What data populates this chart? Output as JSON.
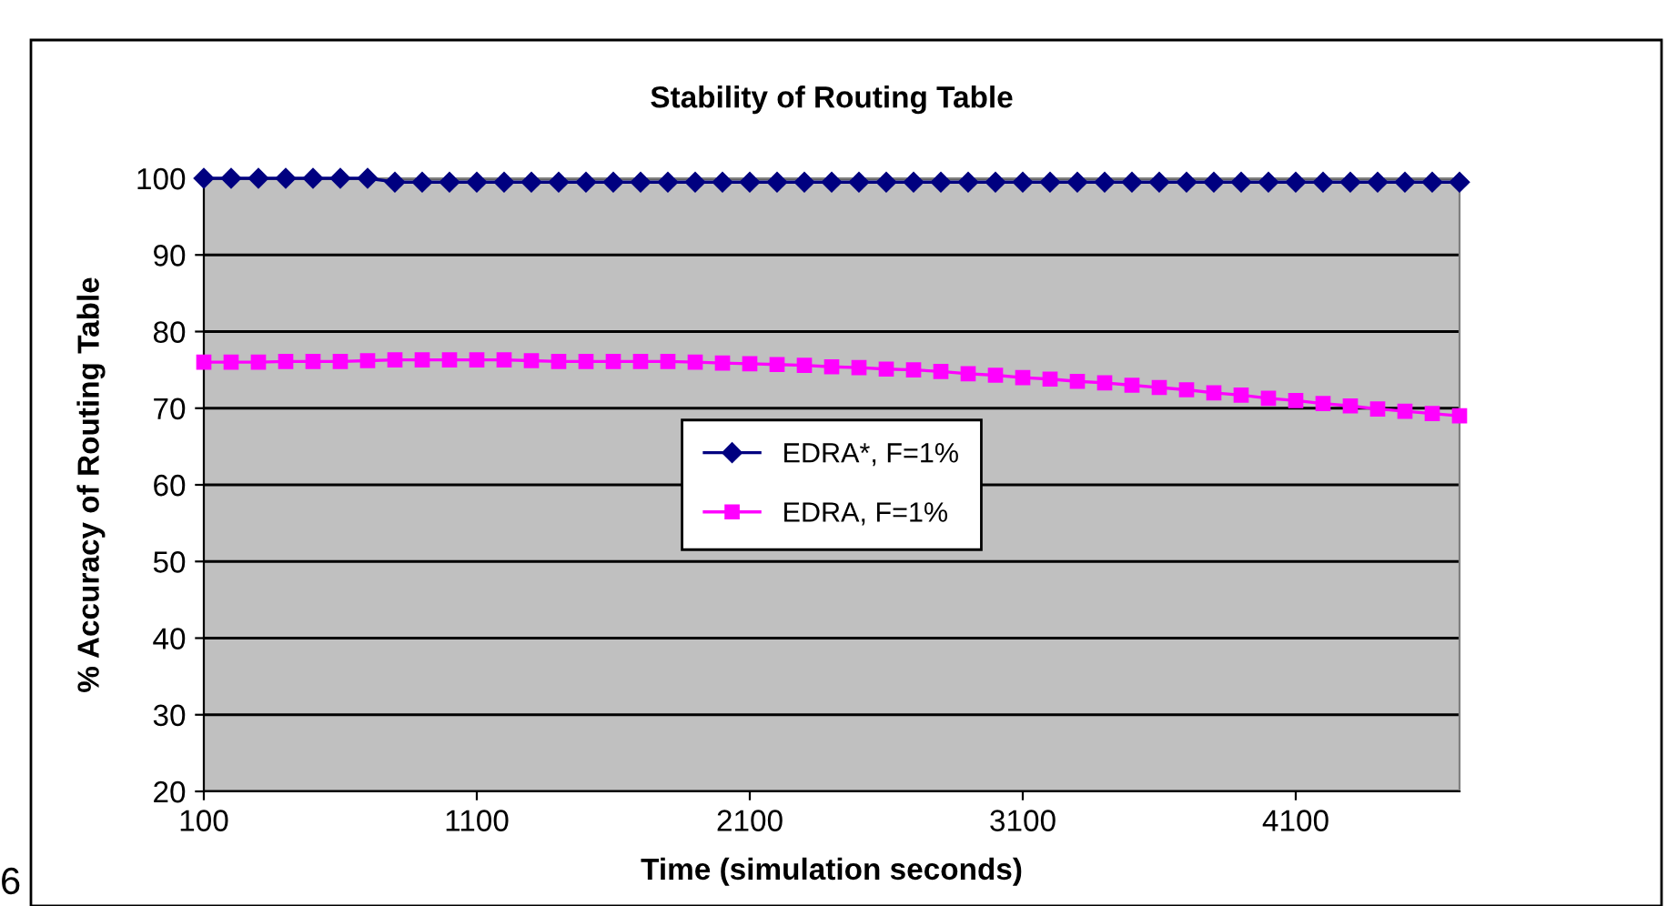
{
  "chart_data": {
    "type": "line",
    "title": "Stability of Routing Table",
    "xlabel": "Time (simulation seconds)",
    "ylabel": "% Accuracy of Routing Table",
    "x": [
      100,
      200,
      300,
      400,
      500,
      600,
      700,
      800,
      900,
      1000,
      1100,
      1200,
      1300,
      1400,
      1500,
      1600,
      1700,
      1800,
      1900,
      2000,
      2100,
      2200,
      2300,
      2400,
      2500,
      2600,
      2700,
      2800,
      2900,
      3000,
      3100,
      3200,
      3300,
      3400,
      3500,
      3600,
      3700,
      3800,
      3900,
      4000,
      4100,
      4200,
      4300,
      4400,
      4500,
      4600,
      4700
    ],
    "series": [
      {
        "name": "EDRA*, F=1%",
        "color": "#000080",
        "marker": "diamond",
        "values": [
          100,
          100,
          100,
          100,
          100,
          100,
          100,
          99.5,
          99.5,
          99.5,
          99.5,
          99.5,
          99.5,
          99.5,
          99.5,
          99.5,
          99.5,
          99.5,
          99.5,
          99.5,
          99.5,
          99.5,
          99.5,
          99.5,
          99.5,
          99.5,
          99.5,
          99.5,
          99.5,
          99.5,
          99.5,
          99.5,
          99.5,
          99.5,
          99.5,
          99.5,
          99.5,
          99.5,
          99.5,
          99.5,
          99.5,
          99.5,
          99.5,
          99.5,
          99.5,
          99.5,
          99.5
        ]
      },
      {
        "name": "EDRA, F=1%",
        "color": "#ff00ff",
        "marker": "square",
        "values": [
          76,
          76,
          76,
          76.1,
          76.1,
          76.1,
          76.2,
          76.3,
          76.3,
          76.3,
          76.3,
          76.3,
          76.2,
          76.1,
          76.1,
          76.1,
          76.1,
          76.1,
          76,
          75.9,
          75.8,
          75.7,
          75.6,
          75.4,
          75.3,
          75.1,
          75,
          74.8,
          74.5,
          74.3,
          74,
          73.8,
          73.5,
          73.3,
          73,
          72.7,
          72.4,
          72,
          71.7,
          71.3,
          71,
          70.6,
          70.3,
          69.9,
          69.6,
          69.3,
          69
        ]
      }
    ],
    "xlim": [
      100,
      4700
    ],
    "xticks": [
      100,
      1100,
      2100,
      3100,
      4100
    ],
    "ylim": [
      20,
      100
    ],
    "yticks": [
      20,
      30,
      40,
      50,
      60,
      70,
      80,
      90,
      100
    ],
    "grid": "y",
    "legend": "center",
    "annotations": [
      "6"
    ]
  }
}
